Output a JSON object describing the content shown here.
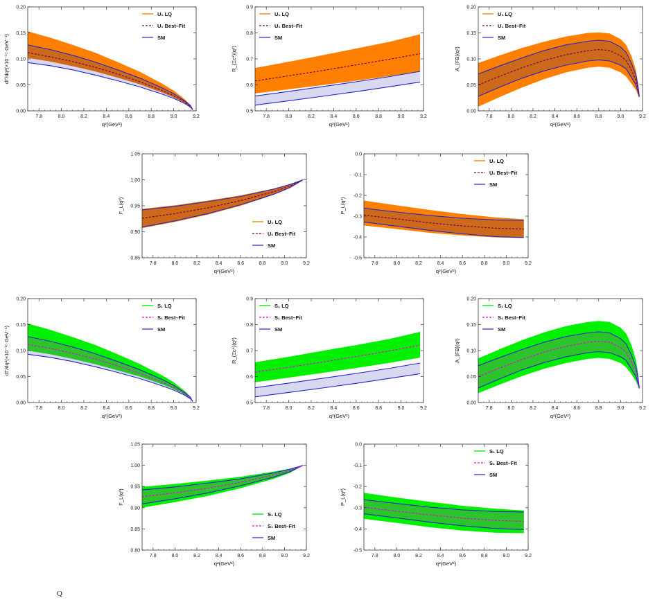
{
  "chart_data": [
    {
      "id": "U1-dGamma",
      "type": "line",
      "xlabel": "q²(GeV²)",
      "ylabel": "dΓ/dq²(×10⁻¹⁵ GeV⁻¹)",
      "xlim": [
        7.7,
        9.2
      ],
      "ylim": [
        0.0,
        0.2
      ],
      "xticks": [
        "7.8",
        "8.0",
        "8.2",
        "8.4",
        "8.6",
        "8.8",
        "9.0",
        "9.2"
      ],
      "yticks": [
        "0.00",
        "0.05",
        "0.10",
        "0.15",
        "0.20"
      ],
      "legend": [
        "U₁ LQ",
        "U₁ Best–Fit",
        "SM"
      ],
      "legend_position": "top-right",
      "x": [
        7.7,
        7.9,
        8.1,
        8.3,
        8.5,
        8.7,
        8.9,
        9.0,
        9.1,
        9.15,
        9.17
      ],
      "np_upper": [
        0.153,
        0.141,
        0.127,
        0.112,
        0.094,
        0.075,
        0.052,
        0.039,
        0.022,
        0.011,
        0.002
      ],
      "np_lower": [
        0.102,
        0.095,
        0.086,
        0.076,
        0.064,
        0.051,
        0.035,
        0.026,
        0.015,
        0.008,
        0.002
      ],
      "best_fit": [
        0.112,
        0.104,
        0.095,
        0.084,
        0.071,
        0.056,
        0.039,
        0.029,
        0.017,
        0.009,
        0.002
      ],
      "sm_upper": [
        0.127,
        0.118,
        0.107,
        0.094,
        0.079,
        0.063,
        0.044,
        0.033,
        0.019,
        0.01,
        0.002
      ],
      "sm_lower": [
        0.093,
        0.087,
        0.079,
        0.069,
        0.058,
        0.046,
        0.032,
        0.024,
        0.014,
        0.007,
        0.002
      ]
    },
    {
      "id": "U1-R",
      "type": "line",
      "xlabel": "q²(GeV²)",
      "ylabel": "R_{Ξc*}(q²)",
      "xlim": [
        7.7,
        9.2
      ],
      "ylim": [
        0.5,
        0.9
      ],
      "xticks": [
        "7.8",
        "8.0",
        "8.2",
        "8.4",
        "8.6",
        "8.8",
        "9.0",
        "9.2"
      ],
      "yticks": [
        "0.5",
        "0.6",
        "0.7",
        "0.8",
        "0.9"
      ],
      "legend": [
        "U₁ LQ",
        "U₁ Best–Fit",
        "SM"
      ],
      "legend_position": "top-left",
      "x": [
        7.7,
        8.0,
        8.3,
        8.6,
        8.9,
        9.17
      ],
      "np_upper": [
        0.665,
        0.689,
        0.714,
        0.74,
        0.766,
        0.795
      ],
      "np_lower": [
        0.567,
        0.583,
        0.599,
        0.616,
        0.634,
        0.652
      ],
      "best_fit": [
        0.615,
        0.635,
        0.655,
        0.677,
        0.699,
        0.72
      ],
      "sm_upper": [
        0.557,
        0.575,
        0.593,
        0.612,
        0.632,
        0.652
      ],
      "sm_lower": [
        0.522,
        0.539,
        0.556,
        0.574,
        0.593,
        0.611
      ]
    },
    {
      "id": "U1-AFB",
      "type": "line",
      "xlabel": "q²(GeV²)",
      "ylabel": "A_{FB}(q²)",
      "xlim": [
        7.7,
        9.2
      ],
      "ylim": [
        0.0,
        0.2
      ],
      "xticks": [
        "7.8",
        "8.0",
        "8.2",
        "8.4",
        "8.6",
        "8.8",
        "9.0",
        "9.2"
      ],
      "yticks": [
        "0.00",
        "0.05",
        "0.10",
        "0.15",
        "0.20"
      ],
      "legend": [
        "U₁ LQ",
        "U₁ Best–Fit",
        "SM"
      ],
      "legend_position": "top-left",
      "x": [
        7.7,
        7.9,
        8.1,
        8.3,
        8.5,
        8.7,
        8.8,
        8.9,
        9.0,
        9.05,
        9.1,
        9.14,
        9.16,
        9.17
      ],
      "np_upper": [
        0.092,
        0.107,
        0.121,
        0.133,
        0.143,
        0.15,
        0.151,
        0.149,
        0.138,
        0.127,
        0.105,
        0.078,
        0.052,
        0.03
      ],
      "np_lower": [
        0.008,
        0.027,
        0.045,
        0.061,
        0.074,
        0.083,
        0.085,
        0.083,
        0.074,
        0.066,
        0.052,
        0.04,
        0.03,
        0.025
      ],
      "best_fit": [
        0.05,
        0.067,
        0.083,
        0.097,
        0.108,
        0.116,
        0.118,
        0.116,
        0.106,
        0.097,
        0.078,
        0.059,
        0.041,
        0.028
      ],
      "sm_upper": [
        0.071,
        0.087,
        0.102,
        0.116,
        0.127,
        0.134,
        0.136,
        0.134,
        0.123,
        0.113,
        0.091,
        0.069,
        0.046,
        0.029
      ],
      "sm_lower": [
        0.028,
        0.046,
        0.063,
        0.077,
        0.088,
        0.096,
        0.098,
        0.096,
        0.088,
        0.081,
        0.064,
        0.05,
        0.036,
        0.027
      ]
    },
    {
      "id": "U1-FL",
      "type": "line",
      "xlabel": "q²(GeV²)",
      "ylabel": "F_L(q²)",
      "xlim": [
        7.7,
        9.2
      ],
      "ylim": [
        0.85,
        1.05
      ],
      "xticks": [
        "7.8",
        "8.0",
        "8.2",
        "8.4",
        "8.6",
        "8.8",
        "9.0",
        "9.2"
      ],
      "yticks": [
        "0.85",
        "0.90",
        "0.95",
        "1.00",
        "1.05"
      ],
      "legend": [
        "U₁ LQ",
        "U₁ Best–Fit",
        "SM"
      ],
      "legend_position": "bottom-right",
      "x": [
        7.7,
        8.0,
        8.3,
        8.6,
        8.9,
        9.05,
        9.17
      ],
      "np_upper": [
        0.944,
        0.951,
        0.96,
        0.97,
        0.983,
        0.991,
        1.0
      ],
      "np_lower": [
        0.907,
        0.919,
        0.933,
        0.95,
        0.971,
        0.984,
        1.0
      ],
      "best_fit": [
        0.926,
        0.935,
        0.946,
        0.96,
        0.977,
        0.988,
        1.0
      ],
      "sm_upper": [
        0.942,
        0.949,
        0.958,
        0.968,
        0.982,
        0.991,
        1.0
      ],
      "sm_lower": [
        0.909,
        0.921,
        0.935,
        0.952,
        0.972,
        0.985,
        1.0
      ]
    },
    {
      "id": "U1-PL",
      "type": "line",
      "xlabel": "q²(GeV²)",
      "ylabel": "P_L(q²)",
      "xlim": [
        7.7,
        9.2
      ],
      "ylim": [
        -0.5,
        0.0
      ],
      "xticks": [
        "7.8",
        "8.0",
        "8.2",
        "8.4",
        "8.6",
        "8.8",
        "9.0",
        "9.2"
      ],
      "yticks": [
        "0.0",
        "-0.1",
        "-0.2",
        "-0.3",
        "-0.4",
        "-0.5"
      ],
      "legend": [
        "U₁ LQ",
        "U₁ Best–Fit",
        "SM"
      ],
      "legend_position": "top-right",
      "x": [
        7.7,
        8.0,
        8.3,
        8.6,
        8.9,
        9.16
      ],
      "np_upper": [
        -0.225,
        -0.248,
        -0.27,
        -0.29,
        -0.306,
        -0.315
      ],
      "np_lower": [
        -0.345,
        -0.362,
        -0.38,
        -0.393,
        -0.402,
        -0.405
      ],
      "best_fit": [
        -0.295,
        -0.313,
        -0.332,
        -0.347,
        -0.358,
        -0.362
      ],
      "sm_upper": [
        -0.262,
        -0.28,
        -0.297,
        -0.31,
        -0.318,
        -0.32
      ],
      "sm_lower": [
        -0.328,
        -0.348,
        -0.368,
        -0.385,
        -0.398,
        -0.403
      ]
    },
    {
      "id": "S1-dGamma",
      "type": "line",
      "xlabel": "q²(GeV²)",
      "ylabel": "dΓ/dq²(×10⁻¹⁵ GeV⁻¹)",
      "xlim": [
        7.7,
        9.2
      ],
      "ylim": [
        0.0,
        0.2
      ],
      "xticks": [
        "7.8",
        "8.0",
        "8.2",
        "8.4",
        "8.6",
        "8.8",
        "9.0",
        "9.2"
      ],
      "yticks": [
        "0.00",
        "0.05",
        "0.10",
        "0.15",
        "0.20"
      ],
      "legend": [
        "S₁ LQ",
        "S₁ Best–Fit",
        "SM"
      ],
      "legend_position": "top-right",
      "x": [
        7.7,
        7.9,
        8.1,
        8.3,
        8.5,
        8.7,
        8.9,
        9.0,
        9.1,
        9.15,
        9.17
      ],
      "np_upper": [
        0.152,
        0.14,
        0.126,
        0.111,
        0.093,
        0.074,
        0.052,
        0.039,
        0.022,
        0.011,
        0.002
      ],
      "np_lower": [
        0.1,
        0.093,
        0.084,
        0.074,
        0.062,
        0.05,
        0.035,
        0.026,
        0.015,
        0.008,
        0.002
      ],
      "best_fit": [
        0.112,
        0.104,
        0.095,
        0.084,
        0.071,
        0.056,
        0.039,
        0.029,
        0.017,
        0.009,
        0.002
      ],
      "sm_upper": [
        0.127,
        0.118,
        0.107,
        0.094,
        0.079,
        0.063,
        0.044,
        0.033,
        0.019,
        0.01,
        0.002
      ],
      "sm_lower": [
        0.093,
        0.087,
        0.079,
        0.069,
        0.058,
        0.046,
        0.032,
        0.024,
        0.014,
        0.007,
        0.002
      ]
    },
    {
      "id": "S1-R",
      "type": "line",
      "xlabel": "q²(GeV²)",
      "ylabel": "R_{Ξc*}(q²)",
      "xlim": [
        7.7,
        9.2
      ],
      "ylim": [
        0.5,
        0.9
      ],
      "xticks": [
        "7.8",
        "8.0",
        "8.2",
        "8.4",
        "8.6",
        "8.8",
        "9.0",
        "9.2"
      ],
      "yticks": [
        "0.5",
        "0.6",
        "0.7",
        "0.8",
        "0.9"
      ],
      "legend": [
        "S₁ LQ",
        "S₁ Best–Fit",
        "SM"
      ],
      "legend_position": "top-left",
      "x": [
        7.7,
        8.0,
        8.3,
        8.6,
        8.9,
        9.17
      ],
      "np_upper": [
        0.655,
        0.676,
        0.699,
        0.721,
        0.745,
        0.772
      ],
      "np_lower": [
        0.578,
        0.596,
        0.614,
        0.633,
        0.653,
        0.673
      ],
      "best_fit": [
        0.617,
        0.636,
        0.656,
        0.677,
        0.699,
        0.721
      ],
      "sm_upper": [
        0.557,
        0.575,
        0.593,
        0.612,
        0.632,
        0.652
      ],
      "sm_lower": [
        0.522,
        0.539,
        0.556,
        0.574,
        0.593,
        0.611
      ]
    },
    {
      "id": "S1-AFB",
      "type": "line",
      "xlabel": "q²(GeV²)",
      "ylabel": "A_{FB}(q²)",
      "xlim": [
        7.7,
        9.2
      ],
      "ylim": [
        0.0,
        0.2
      ],
      "xticks": [
        "7.8",
        "8.0",
        "8.2",
        "8.4",
        "8.6",
        "8.8",
        "9.0",
        "9.2"
      ],
      "yticks": [
        "0.00",
        "0.05",
        "0.10",
        "0.15",
        "0.20"
      ],
      "legend": [
        "S₁ LQ",
        "S₁ Best–Fit",
        "SM"
      ],
      "legend_position": "top-left",
      "x": [
        7.7,
        7.9,
        8.1,
        8.3,
        8.5,
        8.7,
        8.8,
        8.9,
        9.0,
        9.05,
        9.1,
        9.14,
        9.16,
        9.17
      ],
      "np_upper": [
        0.085,
        0.103,
        0.12,
        0.135,
        0.147,
        0.155,
        0.157,
        0.155,
        0.144,
        0.133,
        0.11,
        0.082,
        0.055,
        0.032
      ],
      "np_lower": [
        0.018,
        0.035,
        0.051,
        0.065,
        0.076,
        0.084,
        0.086,
        0.084,
        0.076,
        0.068,
        0.054,
        0.041,
        0.031,
        0.026
      ],
      "best_fit": [
        0.05,
        0.067,
        0.083,
        0.097,
        0.108,
        0.116,
        0.118,
        0.116,
        0.106,
        0.097,
        0.078,
        0.059,
        0.041,
        0.028
      ],
      "sm_upper": [
        0.071,
        0.087,
        0.102,
        0.116,
        0.127,
        0.134,
        0.136,
        0.134,
        0.123,
        0.113,
        0.091,
        0.069,
        0.046,
        0.029
      ],
      "sm_lower": [
        0.028,
        0.046,
        0.063,
        0.077,
        0.088,
        0.096,
        0.098,
        0.096,
        0.088,
        0.081,
        0.064,
        0.05,
        0.036,
        0.027
      ]
    },
    {
      "id": "S1-FL",
      "type": "line",
      "xlabel": "q²(GeV²)",
      "ylabel": "F_L(q²)",
      "xlim": [
        7.7,
        9.2
      ],
      "ylim": [
        0.8,
        1.05
      ],
      "xticks": [
        "7.8",
        "8.0",
        "8.2",
        "8.4",
        "8.6",
        "8.8",
        "9.0",
        "9.2"
      ],
      "yticks": [
        "0.80",
        "0.85",
        "0.90",
        "0.95",
        "1.00",
        "1.05"
      ],
      "legend": [
        "S₁ LQ",
        "S₁ Best–Fit",
        "SM"
      ],
      "legend_position": "bottom-right",
      "x": [
        7.7,
        8.0,
        8.3,
        8.6,
        8.9,
        9.05,
        9.17
      ],
      "np_upper": [
        0.949,
        0.956,
        0.964,
        0.973,
        0.985,
        0.992,
        1.0
      ],
      "np_lower": [
        0.9,
        0.913,
        0.928,
        0.946,
        0.968,
        0.982,
        1.0
      ],
      "best_fit": [
        0.926,
        0.935,
        0.946,
        0.96,
        0.977,
        0.988,
        1.0
      ],
      "sm_upper": [
        0.942,
        0.949,
        0.958,
        0.968,
        0.982,
        0.991,
        1.0
      ],
      "sm_lower": [
        0.909,
        0.921,
        0.935,
        0.952,
        0.972,
        0.985,
        1.0
      ]
    },
    {
      "id": "S1-PL",
      "type": "line",
      "xlabel": "q²(GeV²)",
      "ylabel": "P_L(q²)",
      "xlim": [
        7.7,
        9.2
      ],
      "ylim": [
        -0.5,
        0.0
      ],
      "xticks": [
        "7.8",
        "8.0",
        "8.2",
        "8.4",
        "8.6",
        "8.8",
        "9.0",
        "9.2"
      ],
      "yticks": [
        "0.0",
        "-0.1",
        "-0.2",
        "-0.3",
        "-0.4",
        "-0.5"
      ],
      "legend": [
        "S₁ LQ",
        "S₁ Best–Fit",
        "SM"
      ],
      "legend_position": "top-right",
      "x": [
        7.7,
        8.0,
        8.3,
        8.6,
        8.9,
        9.16
      ],
      "np_upper": [
        -0.23,
        -0.252,
        -0.272,
        -0.291,
        -0.305,
        -0.313
      ],
      "np_lower": [
        -0.352,
        -0.372,
        -0.392,
        -0.408,
        -0.418,
        -0.42
      ],
      "best_fit": [
        -0.298,
        -0.316,
        -0.334,
        -0.349,
        -0.36,
        -0.364
      ],
      "sm_upper": [
        -0.262,
        -0.28,
        -0.297,
        -0.31,
        -0.318,
        -0.32
      ],
      "sm_lower": [
        -0.328,
        -0.348,
        -0.368,
        -0.385,
        -0.398,
        -0.403
      ]
    }
  ],
  "colors": {
    "u1_band": "#ff8000",
    "u1_overlap": "#c8661e",
    "s1_band": "#00f000",
    "s1_overlap": "#30c030",
    "sm_band": "#d8d8f0",
    "sm_line": "#2222cc",
    "u1_best_fit": "#7a0044",
    "s1_best_fit": "#ee00ee"
  },
  "footer_text": "Q"
}
